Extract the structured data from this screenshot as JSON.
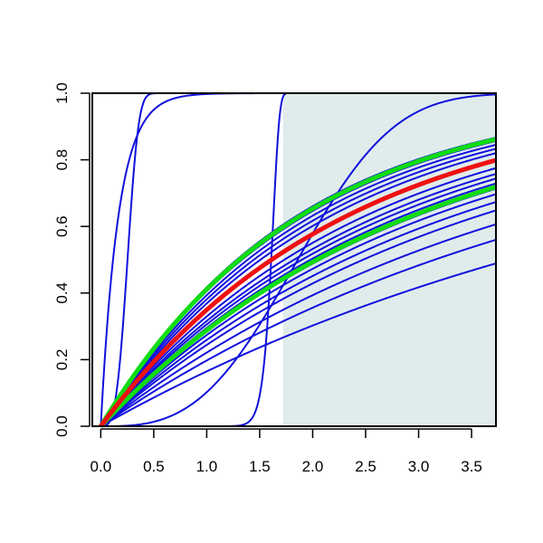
{
  "chart_data": {
    "type": "line",
    "title": "",
    "xlabel": "",
    "ylabel": "",
    "xlim": [
      -0.08,
      3.73
    ],
    "ylim": [
      0.0,
      1.0
    ],
    "x_ticks": [
      "0.0",
      "0.5",
      "1.0",
      "1.5",
      "2.0",
      "2.5",
      "3.0",
      "3.5"
    ],
    "y_ticks": [
      "0.0",
      "0.2",
      "0.4",
      "0.6",
      "0.8",
      "1.0"
    ],
    "shaded_region": {
      "x_from": 1.72,
      "x_to": 3.73,
      "color": "#e0ecec"
    },
    "colors": {
      "blue": "#1010dd",
      "red": "#ee1111",
      "green": "#11dd11"
    },
    "series": [
      {
        "color": "blue",
        "kind": "exp",
        "rate": 6.0
      },
      {
        "color": "blue",
        "kind": "weibull",
        "scale": 0.28,
        "shape": 3.5
      },
      {
        "color": "blue",
        "kind": "weibull",
        "scale": 1.63,
        "shape": 28.0
      },
      {
        "color": "blue",
        "kind": "weibull",
        "scale": 2.1,
        "shape": 3.0
      },
      {
        "color": "blue",
        "kind": "exp",
        "rate": 0.54
      },
      {
        "color": "blue",
        "kind": "exp",
        "rate": 0.52
      },
      {
        "color": "blue",
        "kind": "exp",
        "rate": 0.5
      },
      {
        "color": "blue",
        "kind": "exp",
        "rate": 0.48
      },
      {
        "color": "blue",
        "kind": "exp",
        "rate": 0.46
      },
      {
        "color": "blue",
        "kind": "exp",
        "rate": 0.4
      },
      {
        "color": "blue",
        "kind": "exp",
        "rate": 0.38
      },
      {
        "color": "blue",
        "kind": "exp",
        "rate": 0.365
      },
      {
        "color": "blue",
        "kind": "exp",
        "rate": 0.35
      },
      {
        "color": "blue",
        "kind": "exp",
        "rate": 0.335
      },
      {
        "color": "blue",
        "kind": "exp",
        "rate": 0.32
      },
      {
        "color": "blue",
        "kind": "exp",
        "rate": 0.3
      },
      {
        "color": "blue",
        "kind": "exp",
        "rate": 0.28
      },
      {
        "color": "blue",
        "kind": "exp",
        "rate": 0.25
      },
      {
        "color": "blue",
        "kind": "exp",
        "rate": 0.22
      },
      {
        "color": "blue",
        "kind": "exp",
        "rate": 0.18
      },
      {
        "color": "green",
        "kind": "exp",
        "rate": 0.53,
        "bold": true
      },
      {
        "color": "green",
        "kind": "exp",
        "rate": 0.34,
        "bold": true
      },
      {
        "color": "red",
        "kind": "exp",
        "rate": 0.43,
        "bold": true
      }
    ]
  }
}
